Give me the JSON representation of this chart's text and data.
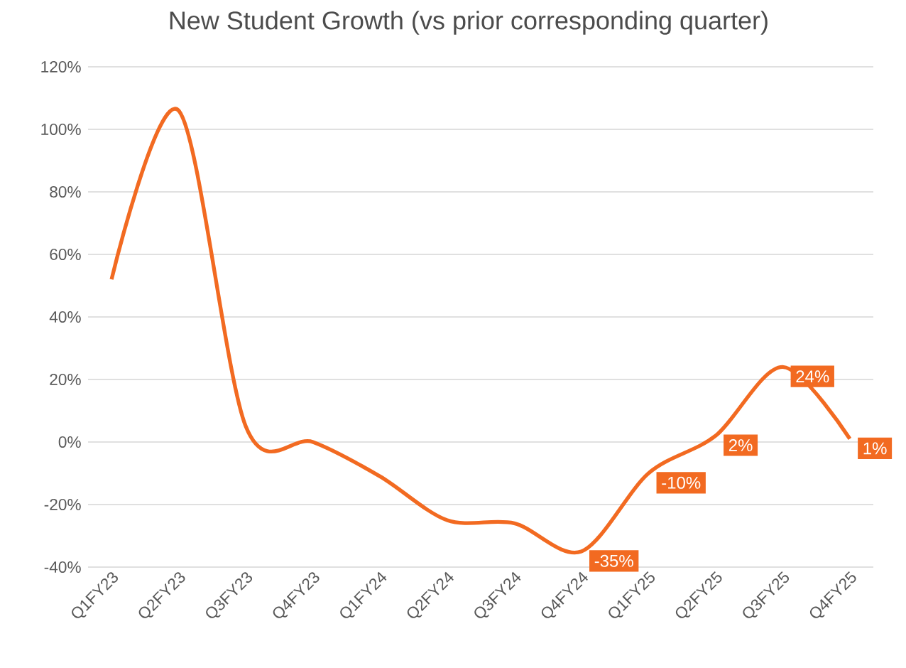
{
  "chart_data": {
    "type": "line",
    "title": "New Student Growth (vs prior corresponding quarter)",
    "categories": [
      "Q1FY23",
      "Q2FY23",
      "Q3FY23",
      "Q4FY23",
      "Q1FY24",
      "Q2FY24",
      "Q3FY24",
      "Q4FY24",
      "Q1FY25",
      "Q2FY25",
      "Q3FY25",
      "Q4FY25"
    ],
    "values": [
      52,
      106,
      5,
      0,
      -11,
      -25,
      -26,
      -35,
      -10,
      2,
      24,
      1
    ],
    "value_labels": [
      null,
      null,
      null,
      null,
      null,
      null,
      null,
      "-35%",
      "-10%",
      "2%",
      "24%",
      "1%"
    ],
    "color": "#f26a21",
    "ylim": [
      -40,
      120
    ],
    "yticks": [
      {
        "value": -40,
        "label": "-40%"
      },
      {
        "value": -20,
        "label": "-20%"
      },
      {
        "value": 0,
        "label": "0%"
      },
      {
        "value": 20,
        "label": "20%"
      },
      {
        "value": 40,
        "label": "40%"
      },
      {
        "value": 60,
        "label": "60%"
      },
      {
        "value": 80,
        "label": "80%"
      },
      {
        "value": 100,
        "label": "100%"
      },
      {
        "value": 120,
        "label": "120%"
      }
    ],
    "grid": "y",
    "marker": "none",
    "line_style": "solid"
  }
}
